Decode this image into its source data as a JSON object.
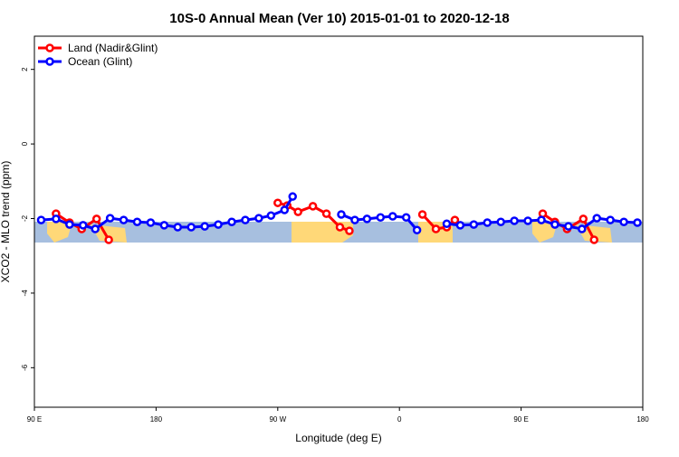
{
  "chart_data": {
    "type": "line",
    "title": "10S-0 Annual Mean (Ver 10)   2015-01-01 to 2020-12-18",
    "xlabel": "Longitude (deg E)",
    "ylabel": "XCO2 - MLO trend (ppm)",
    "xlim": [
      90,
      540
    ],
    "ylim": [
      -7.06,
      2.89
    ],
    "xticks": [
      {
        "value": 90,
        "label": "90 E"
      },
      {
        "value": 180,
        "label": "180"
      },
      {
        "value": 270,
        "label": "90 W"
      },
      {
        "value": 360,
        "label": "0"
      },
      {
        "value": 450,
        "label": "90 E"
      },
      {
        "value": 540,
        "label": "180"
      }
    ],
    "yticks": [
      2,
      0,
      -2,
      -4,
      -6
    ],
    "legend": "top-left",
    "series": [
      {
        "name": "Land (Nadir&Glint)",
        "color": "#ff0000",
        "x": [
          106,
          116,
          125,
          136,
          145,
          null,
          270,
          277,
          285,
          296,
          306,
          316,
          323,
          null,
          377,
          387,
          395,
          401,
          null,
          466,
          475,
          484,
          496,
          504
        ],
        "values": [
          -1.87,
          -2.11,
          -2.28,
          -2.01,
          -2.57,
          null,
          -1.58,
          -1.65,
          -1.82,
          -1.67,
          -1.87,
          -2.23,
          -2.33,
          null,
          -1.89,
          -2.28,
          -2.23,
          -2.04,
          null,
          -1.87,
          -2.09,
          -2.28,
          -2.01,
          -2.57
        ]
      },
      {
        "name": "Ocean (Glint)",
        "color": "#0000ff",
        "x": [
          95,
          106,
          116,
          126,
          135,
          146,
          156,
          166,
          176,
          186,
          196,
          206,
          216,
          226,
          236,
          246,
          256,
          265,
          275,
          281,
          null,
          317,
          327,
          336,
          346,
          355,
          365,
          373,
          null,
          395,
          405,
          415,
          425,
          435,
          445,
          455,
          465,
          475,
          485,
          495,
          506,
          516,
          526,
          536
        ],
        "values": [
          -2.04,
          -2.01,
          -2.16,
          -2.18,
          -2.28,
          -1.99,
          -2.04,
          -2.09,
          -2.11,
          -2.18,
          -2.23,
          -2.23,
          -2.21,
          -2.16,
          -2.09,
          -2.04,
          -1.99,
          -1.92,
          -1.77,
          -1.41,
          null,
          -1.89,
          -2.04,
          -2.01,
          -1.97,
          -1.94,
          -1.97,
          -2.31,
          null,
          -2.14,
          -2.18,
          -2.16,
          -2.11,
          -2.09,
          -2.06,
          -2.06,
          -2.04,
          -2.16,
          -2.21,
          -2.28,
          -1.99,
          -2.04,
          -2.09,
          -2.11
        ]
      }
    ]
  }
}
